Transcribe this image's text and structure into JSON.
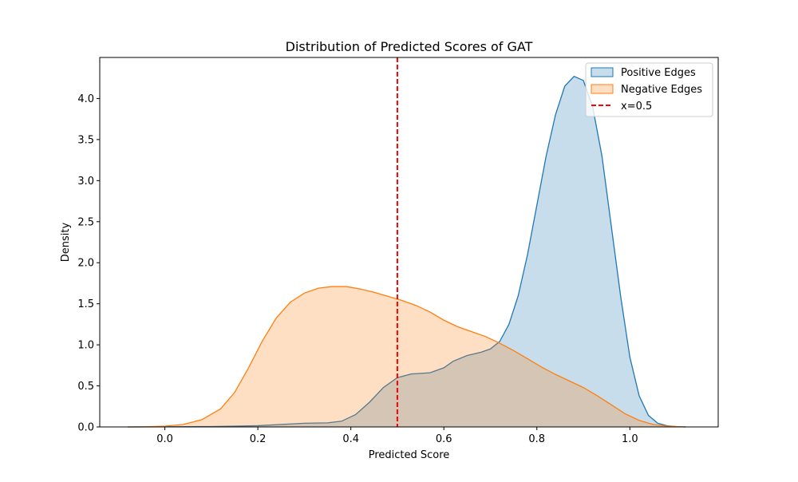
{
  "chart_data": {
    "type": "area",
    "title": "Distribution of Predicted Scores of GAT",
    "xlabel": "Predicted Score",
    "ylabel": "Density",
    "xlim": [
      -0.14,
      1.19
    ],
    "ylim": [
      0.0,
      4.5
    ],
    "x_ticks": [
      0.0,
      0.2,
      0.4,
      0.6,
      0.8,
      1.0
    ],
    "x_tick_labels": [
      "0.0",
      "0.2",
      "0.4",
      "0.6",
      "0.8",
      "1.0"
    ],
    "y_ticks": [
      0.0,
      0.5,
      1.0,
      1.5,
      2.0,
      2.5,
      3.0,
      3.5,
      4.0
    ],
    "y_tick_labels": [
      "0.0",
      "0.5",
      "1.0",
      "1.5",
      "2.0",
      "2.5",
      "3.0",
      "3.5",
      "4.0"
    ],
    "grid": false,
    "legend_position": "top-right",
    "series": [
      {
        "name": "Positive Edges",
        "color": "#1f77b4",
        "fill_opacity": 0.25,
        "points": [
          [
            -0.08,
            0.0
          ],
          [
            0.05,
            0.003
          ],
          [
            0.1,
            0.005
          ],
          [
            0.15,
            0.01
          ],
          [
            0.2,
            0.015
          ],
          [
            0.25,
            0.03
          ],
          [
            0.3,
            0.045
          ],
          [
            0.35,
            0.05
          ],
          [
            0.38,
            0.07
          ],
          [
            0.41,
            0.15
          ],
          [
            0.44,
            0.3
          ],
          [
            0.47,
            0.48
          ],
          [
            0.5,
            0.6
          ],
          [
            0.53,
            0.645
          ],
          [
            0.57,
            0.66
          ],
          [
            0.6,
            0.72
          ],
          [
            0.62,
            0.8
          ],
          [
            0.65,
            0.87
          ],
          [
            0.68,
            0.91
          ],
          [
            0.7,
            0.95
          ],
          [
            0.72,
            1.04
          ],
          [
            0.74,
            1.25
          ],
          [
            0.76,
            1.6
          ],
          [
            0.78,
            2.1
          ],
          [
            0.8,
            2.7
          ],
          [
            0.82,
            3.3
          ],
          [
            0.84,
            3.8
          ],
          [
            0.86,
            4.15
          ],
          [
            0.88,
            4.27
          ],
          [
            0.9,
            4.22
          ],
          [
            0.92,
            3.9
          ],
          [
            0.94,
            3.3
          ],
          [
            0.96,
            2.45
          ],
          [
            0.98,
            1.6
          ],
          [
            1.0,
            0.85
          ],
          [
            1.02,
            0.38
          ],
          [
            1.04,
            0.14
          ],
          [
            1.06,
            0.045
          ],
          [
            1.08,
            0.015
          ],
          [
            1.1,
            0.004
          ],
          [
            1.12,
            0.0
          ]
        ]
      },
      {
        "name": "Negative Edges",
        "color": "#ff7f0e",
        "fill_opacity": 0.25,
        "points": [
          [
            -0.08,
            0.0
          ],
          [
            -0.04,
            0.002
          ],
          [
            0.0,
            0.01
          ],
          [
            0.04,
            0.03
          ],
          [
            0.08,
            0.09
          ],
          [
            0.12,
            0.22
          ],
          [
            0.15,
            0.42
          ],
          [
            0.18,
            0.72
          ],
          [
            0.21,
            1.05
          ],
          [
            0.24,
            1.33
          ],
          [
            0.27,
            1.52
          ],
          [
            0.3,
            1.63
          ],
          [
            0.33,
            1.69
          ],
          [
            0.36,
            1.71
          ],
          [
            0.39,
            1.71
          ],
          [
            0.42,
            1.68
          ],
          [
            0.45,
            1.64
          ],
          [
            0.48,
            1.59
          ],
          [
            0.51,
            1.54
          ],
          [
            0.54,
            1.48
          ],
          [
            0.57,
            1.4
          ],
          [
            0.6,
            1.3
          ],
          [
            0.63,
            1.22
          ],
          [
            0.66,
            1.16
          ],
          [
            0.69,
            1.1
          ],
          [
            0.72,
            1.02
          ],
          [
            0.75,
            0.93
          ],
          [
            0.78,
            0.83
          ],
          [
            0.81,
            0.73
          ],
          [
            0.84,
            0.64
          ],
          [
            0.87,
            0.56
          ],
          [
            0.9,
            0.48
          ],
          [
            0.93,
            0.38
          ],
          [
            0.96,
            0.27
          ],
          [
            0.99,
            0.16
          ],
          [
            1.02,
            0.08
          ],
          [
            1.05,
            0.03
          ],
          [
            1.08,
            0.01
          ],
          [
            1.12,
            0.0
          ]
        ]
      }
    ],
    "reference_line": {
      "name": "x=0.5",
      "x": 0.5,
      "color": "#ff0000",
      "style": "dashed"
    }
  }
}
